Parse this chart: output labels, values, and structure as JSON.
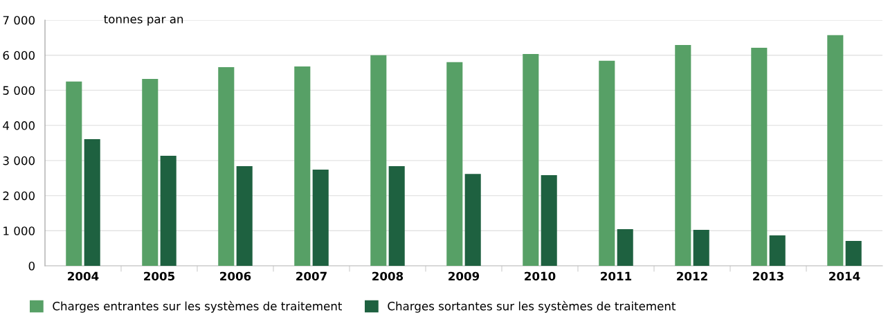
{
  "chart_data": {
    "type": "bar",
    "ylabel": "tonnes par an",
    "categories": [
      "2004",
      "2005",
      "2006",
      "2007",
      "2008",
      "2009",
      "2010",
      "2011",
      "2012",
      "2013",
      "2014"
    ],
    "series": [
      {
        "name": "Charges entrantes sur les systèmes de traitement",
        "color": "#57a066",
        "values": [
          5250,
          5325,
          5660,
          5680,
          6000,
          5800,
          6035,
          5840,
          6290,
          6210,
          6570
        ]
      },
      {
        "name": "Charges sortantes sur les systèmes de traitement",
        "color": "#1e6140",
        "values": [
          3610,
          3135,
          2840,
          2740,
          2840,
          2620,
          2585,
          1045,
          1025,
          870,
          710
        ]
      }
    ],
    "ylim": [
      0,
      7000
    ],
    "yticks": [
      0,
      {
        "value": 1000,
        "label": "1 000"
      },
      {
        "value": 2000,
        "label": "2 000"
      },
      {
        "value": 3000,
        "label": "3 000"
      },
      {
        "value": 4000,
        "label": "4 000"
      },
      {
        "value": 5000,
        "label": "5 000"
      },
      {
        "value": 6000,
        "label": "6 000"
      },
      {
        "value": 7000,
        "label": "7 000"
      }
    ],
    "grid": "y",
    "legend": "bottom"
  }
}
